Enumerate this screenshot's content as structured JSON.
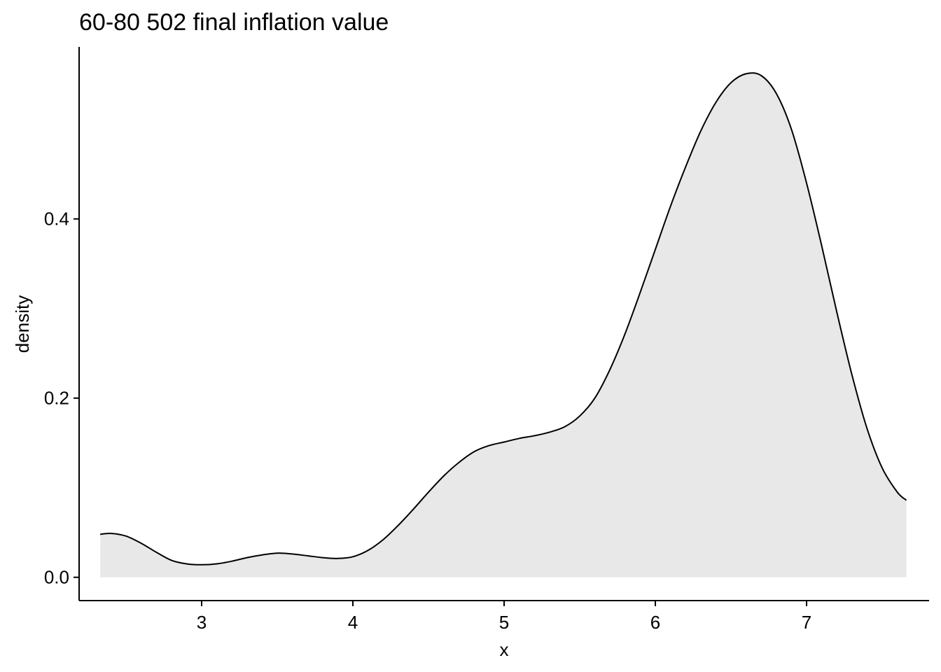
{
  "chart_data": {
    "type": "area",
    "title": "60-80 502 final inflation value",
    "xlabel": "x",
    "ylabel": "density",
    "xlim": [
      2.19,
      7.81
    ],
    "ylim": [
      -0.026,
      0.592
    ],
    "x_ticks": [
      3,
      4,
      5,
      6,
      7
    ],
    "x_tick_labels": [
      "3",
      "4",
      "5",
      "6",
      "7"
    ],
    "y_ticks": [
      0.0,
      0.2,
      0.4
    ],
    "y_tick_labels": [
      "0.0",
      "0.2",
      "0.4"
    ],
    "grid": false,
    "legend": "none",
    "colors": {
      "fill": "#E8E8E8",
      "line": "#000000",
      "axis": "#000000"
    },
    "series": [
      {
        "x": [
          2.33,
          2.4,
          2.5,
          2.6,
          2.7,
          2.8,
          2.9,
          3.0,
          3.1,
          3.2,
          3.3,
          3.4,
          3.5,
          3.6,
          3.7,
          3.8,
          3.9,
          4.0,
          4.1,
          4.2,
          4.3,
          4.4,
          4.5,
          4.6,
          4.7,
          4.8,
          4.9,
          5.0,
          5.1,
          5.2,
          5.3,
          5.4,
          5.5,
          5.6,
          5.7,
          5.8,
          5.9,
          6.0,
          6.1,
          6.2,
          6.3,
          6.4,
          6.5,
          6.6,
          6.7,
          6.8,
          6.9,
          7.0,
          7.1,
          7.2,
          7.3,
          7.4,
          7.5,
          7.6,
          7.66
        ],
        "y": [
          0.048,
          0.049,
          0.046,
          0.038,
          0.028,
          0.019,
          0.015,
          0.014,
          0.015,
          0.018,
          0.022,
          0.025,
          0.027,
          0.026,
          0.024,
          0.022,
          0.021,
          0.023,
          0.03,
          0.042,
          0.058,
          0.076,
          0.095,
          0.113,
          0.128,
          0.14,
          0.147,
          0.151,
          0.155,
          0.158,
          0.162,
          0.168,
          0.18,
          0.2,
          0.232,
          0.272,
          0.318,
          0.366,
          0.414,
          0.458,
          0.498,
          0.53,
          0.552,
          0.562,
          0.56,
          0.54,
          0.5,
          0.44,
          0.37,
          0.296,
          0.226,
          0.166,
          0.122,
          0.095,
          0.086
        ]
      }
    ]
  }
}
